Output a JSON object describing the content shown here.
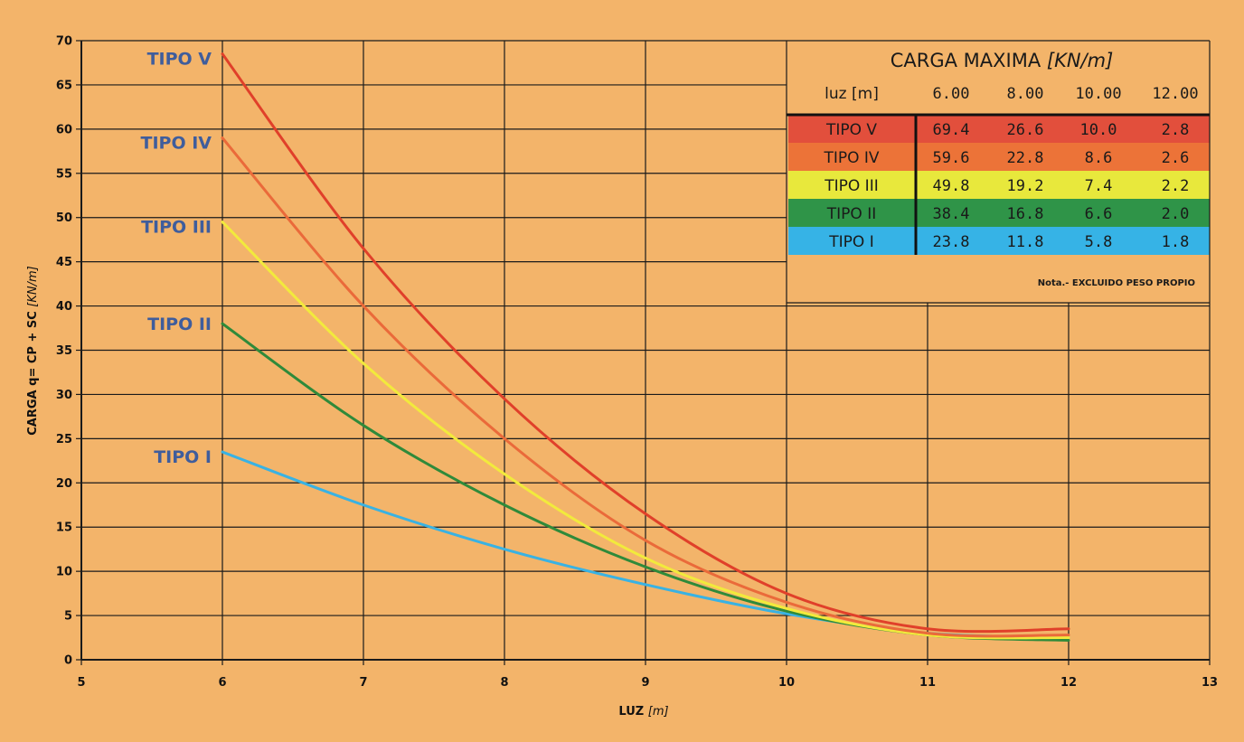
{
  "chart_data": {
    "type": "line",
    "title": "",
    "xlabel": "LUZ",
    "xlabel_unit": "[m]",
    "ylabel": "CARGA  q= CP + SC",
    "ylabel_unit": "[KN/m]",
    "xlim": [
      5,
      13
    ],
    "ylim": [
      0,
      70
    ],
    "x_ticks": [
      "5",
      "6",
      "7",
      "8",
      "9",
      "10",
      "11",
      "12",
      "13"
    ],
    "y_ticks": [
      "0",
      "5",
      "10",
      "15",
      "20",
      "25",
      "30",
      "35",
      "40",
      "45",
      "50",
      "55",
      "60",
      "65",
      "70"
    ],
    "grid": true,
    "x": [
      6,
      8,
      10,
      12
    ],
    "series": [
      {
        "name": "TIPO V",
        "values": [
          69.4,
          26.6,
          10.0,
          2.8
        ],
        "color": "#e0402a",
        "label_y": 68
      },
      {
        "name": "TIPO IV",
        "values": [
          59.6,
          22.8,
          8.6,
          2.6
        ],
        "color": "#ea6a3a",
        "label_y": 58.5
      },
      {
        "name": "TIPO III",
        "values": [
          49.8,
          19.2,
          7.4,
          2.2
        ],
        "color": "#f2ea3c",
        "label_y": 49
      },
      {
        "name": "TIPO II",
        "values": [
          38.4,
          16.8,
          6.6,
          2.0
        ],
        "color": "#2f8a3a",
        "label_y": 38
      },
      {
        "name": "TIPO I",
        "values": [
          23.8,
          11.8,
          5.8,
          1.8
        ],
        "color": "#39b2e3",
        "label_y": 23
      }
    ],
    "curves": [
      {
        "series": "TIPO V",
        "points": [
          [
            6,
            68.5
          ],
          [
            7,
            46.5
          ],
          [
            8,
            29.5
          ],
          [
            9,
            16.5
          ],
          [
            10,
            7.5
          ],
          [
            11,
            3.5
          ],
          [
            12,
            3.5
          ]
        ]
      },
      {
        "series": "TIPO IV",
        "points": [
          [
            6,
            59
          ],
          [
            7,
            40
          ],
          [
            8,
            25
          ],
          [
            9,
            13.5
          ],
          [
            10,
            6.5
          ],
          [
            11,
            3
          ],
          [
            12,
            2.8
          ]
        ]
      },
      {
        "series": "TIPO III",
        "points": [
          [
            6,
            49.5
          ],
          [
            7,
            33.5
          ],
          [
            8,
            21
          ],
          [
            9,
            11.5
          ],
          [
            10,
            5.8
          ],
          [
            11,
            2.8
          ],
          [
            12,
            2.5
          ]
        ]
      },
      {
        "series": "TIPO II",
        "points": [
          [
            6,
            38
          ],
          [
            7,
            26.5
          ],
          [
            8,
            17.5
          ],
          [
            9,
            10.5
          ],
          [
            10,
            5.5
          ],
          [
            11,
            2.8
          ],
          [
            12,
            2.2
          ]
        ]
      },
      {
        "series": "TIPO I",
        "points": [
          [
            6,
            23.5
          ],
          [
            7,
            17.5
          ],
          [
            8,
            12.5
          ],
          [
            9,
            8.5
          ],
          [
            10,
            5.2
          ],
          [
            11,
            3
          ],
          [
            12,
            2.5
          ]
        ]
      }
    ]
  },
  "table": {
    "title": "CARGA MAXIMA",
    "title_unit": "[KN/m]",
    "header": [
      "luz [m]",
      "6.00",
      "8.00",
      "10.00",
      "12.00"
    ],
    "rows": [
      {
        "label": "TIPO V",
        "values": [
          "69.4",
          "26.6",
          "10.0",
          "2.8"
        ],
        "color": "#e24f3c"
      },
      {
        "label": "TIPO IV",
        "values": [
          "59.6",
          "22.8",
          "8.6",
          "2.6"
        ],
        "color": "#ec7338"
      },
      {
        "label": "TIPO III",
        "values": [
          "49.8",
          "19.2",
          "7.4",
          "2.2"
        ],
        "color": "#e8e83c"
      },
      {
        "label": "TIPO II",
        "values": [
          "38.4",
          "16.8",
          "6.6",
          "2.0"
        ],
        "color": "#2f9448"
      },
      {
        "label": "TIPO I",
        "values": [
          "23.8",
          "11.8",
          "5.8",
          "1.8"
        ],
        "color": "#36b3e6"
      }
    ],
    "note": "Nota.- EXCLUIDO PESO PROPIO"
  },
  "colors": {
    "background": "#f3b46a",
    "grid": "#1a1a1a",
    "label": "#3f5d9c"
  }
}
